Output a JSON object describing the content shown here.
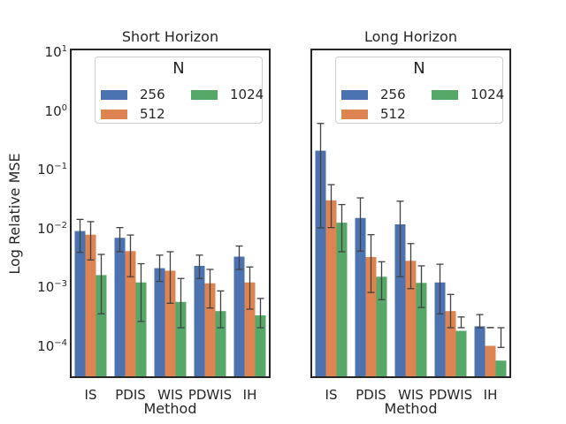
{
  "chart_data": {
    "type": "bar",
    "log_scale_y": true,
    "xlabel": "Method",
    "ylabel": "Log Relative MSE",
    "categories": [
      "IS",
      "PDIS",
      "WIS",
      "PDWIS",
      "IH"
    ],
    "yticks": [
      10,
      1,
      0.1,
      0.01,
      0.001,
      0.0001
    ],
    "ylim": [
      2.93e-05,
      11.0
    ],
    "grid": false,
    "legend": {
      "title": "N",
      "position": "upper center inside axes",
      "entries": [
        {
          "name": "256",
          "color": "#4C72B0"
        },
        {
          "name": "512",
          "color": "#DD8452"
        },
        {
          "name": "1024",
          "color": "#55A868"
        }
      ]
    },
    "style": {
      "spine_color": "#262626",
      "text_color": "#262626",
      "error_bar_color": "#424242",
      "background": "#ffffff"
    },
    "subplots": [
      {
        "title": "Short Horizon",
        "series": [
          {
            "name": "256",
            "values": [
              0.009,
              0.0069,
              0.0021,
              0.0023,
              0.0033
            ],
            "err_lo": [
              0.0039,
              0.004,
              0.00125,
              0.0014,
              0.002
            ],
            "err_hi": [
              0.0142,
              0.0103,
              0.0035,
              0.0035,
              0.005
            ]
          },
          {
            "name": "512",
            "values": [
              0.0078,
              0.0041,
              0.0019,
              0.00116,
              0.0012
            ],
            "err_lo": [
              0.0029,
              0.0015,
              0.00053,
              0.00044,
              0.00042
            ],
            "err_hi": [
              0.013,
              0.0077,
              0.004,
              0.002,
              0.0022
            ]
          },
          {
            "name": "1024",
            "values": [
              0.0016,
              0.0012,
              0.00056,
              0.00039,
              0.00033
            ],
            "err_lo": [
              0.00035,
              0.00026,
              5.5e-05,
              5.2e-05,
              5.2e-05
            ],
            "err_hi": [
              0.0036,
              0.0025,
              0.0014,
              0.00086,
              0.00064
            ]
          }
        ]
      },
      {
        "title": "Long Horizon",
        "series": [
          {
            "name": "256",
            "values": [
              0.21,
              0.015,
              0.0117,
              0.0012,
              0.000215
            ],
            "err_lo": [
              0.0102,
              0.0041,
              0.0015,
              0.00035,
              0.000105
            ],
            "err_hi": [
              0.61,
              0.033,
              0.029,
              0.00245,
              0.00034
            ]
          },
          {
            "name": "512",
            "values": [
              0.03,
              0.00325,
              0.0028,
              0.00039,
              0.0001
            ],
            "err_lo": [
              0.0103,
              0.00081,
              0.00094,
              0.000125,
              3.4e-05
            ],
            "err_hi": [
              0.0555,
              0.0078,
              0.0055,
              0.00075,
              0.000205
            ]
          },
          {
            "name": "1024",
            "values": [
              0.0125,
              0.0015,
              0.00118,
              0.00018,
              5.6e-05
            ],
            "err_lo": [
              0.004,
              0.00061,
              0.00045,
              9.4e-05,
              3.3e-05
            ],
            "err_hi": [
              0.0254,
              0.0027,
              0.0023,
              0.00031,
              9.4e-05
            ]
          }
        ]
      }
    ]
  }
}
